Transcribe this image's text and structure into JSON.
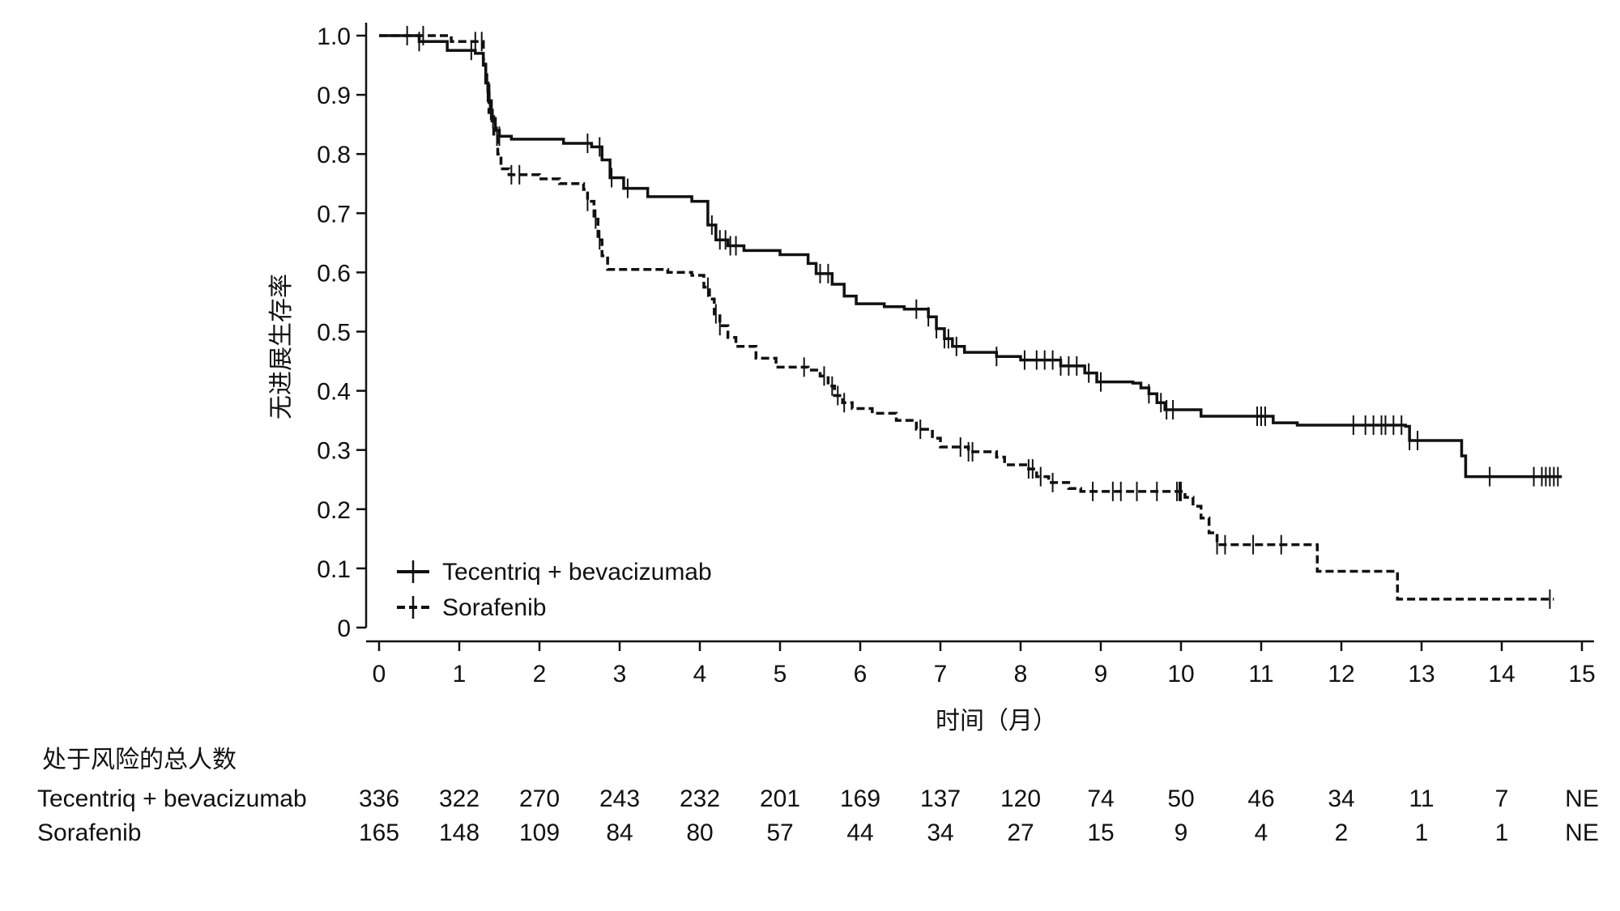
{
  "chart_data": {
    "type": "line",
    "subtype": "kaplan-meier",
    "xlabel": "时间（月）",
    "ylabel": "无进展生存率",
    "xlim": [
      0,
      15
    ],
    "ylim": [
      0,
      1.0
    ],
    "x_ticks": [
      0,
      1,
      2,
      3,
      4,
      5,
      6,
      7,
      8,
      9,
      10,
      11,
      12,
      13,
      14,
      15
    ],
    "y_ticks": [
      0,
      0.1,
      0.2,
      0.3,
      0.4,
      0.5,
      0.6,
      0.7,
      0.8,
      0.9,
      1.0
    ],
    "y_tick_labels": [
      "0",
      "0.1",
      "0.2",
      "0.3",
      "0.4",
      "0.5",
      "0.6",
      "0.7",
      "0.8",
      "0.9",
      "1.0"
    ],
    "grid": false,
    "legend_position": "bottom-left",
    "series": [
      {
        "name": "Tecentriq + bevacizumab",
        "style": "solid",
        "color": "#111111",
        "steps": [
          [
            0,
            1.0
          ],
          [
            0.5,
            0.99
          ],
          [
            0.85,
            0.975
          ],
          [
            1.2,
            0.97
          ],
          [
            1.3,
            0.95
          ],
          [
            1.33,
            0.92
          ],
          [
            1.36,
            0.89
          ],
          [
            1.4,
            0.86
          ],
          [
            1.45,
            0.84
          ],
          [
            1.5,
            0.83
          ],
          [
            1.65,
            0.825
          ],
          [
            2.3,
            0.818
          ],
          [
            2.65,
            0.812
          ],
          [
            2.78,
            0.79
          ],
          [
            2.88,
            0.76
          ],
          [
            3.05,
            0.742
          ],
          [
            3.35,
            0.728
          ],
          [
            3.9,
            0.72
          ],
          [
            4.1,
            0.68
          ],
          [
            4.2,
            0.655
          ],
          [
            4.35,
            0.645
          ],
          [
            4.55,
            0.637
          ],
          [
            5.0,
            0.63
          ],
          [
            5.35,
            0.615
          ],
          [
            5.45,
            0.598
          ],
          [
            5.65,
            0.58
          ],
          [
            5.8,
            0.56
          ],
          [
            5.95,
            0.547
          ],
          [
            6.3,
            0.542
          ],
          [
            6.55,
            0.538
          ],
          [
            6.85,
            0.525
          ],
          [
            6.95,
            0.505
          ],
          [
            7.05,
            0.488
          ],
          [
            7.15,
            0.475
          ],
          [
            7.3,
            0.465
          ],
          [
            7.7,
            0.458
          ],
          [
            8.0,
            0.452
          ],
          [
            8.5,
            0.442
          ],
          [
            8.8,
            0.43
          ],
          [
            8.95,
            0.415
          ],
          [
            9.4,
            0.413
          ],
          [
            9.5,
            0.405
          ],
          [
            9.6,
            0.395
          ],
          [
            9.7,
            0.38
          ],
          [
            9.8,
            0.368
          ],
          [
            10.25,
            0.357
          ],
          [
            11.15,
            0.346
          ],
          [
            11.45,
            0.342
          ],
          [
            12.8,
            0.34
          ],
          [
            12.85,
            0.316
          ],
          [
            13.5,
            0.29
          ],
          [
            13.55,
            0.255
          ],
          [
            14.75,
            0.255
          ]
        ],
        "censor_x": [
          0.5,
          1.15,
          1.35,
          1.38,
          1.42,
          1.5,
          2.6,
          2.75,
          2.9,
          3.1,
          4.15,
          4.25,
          4.32,
          4.38,
          4.45,
          5.5,
          5.6,
          6.7,
          6.85,
          6.95,
          7.05,
          7.1,
          7.2,
          7.7,
          8.05,
          8.2,
          8.3,
          8.4,
          8.5,
          8.6,
          8.7,
          8.85,
          9.0,
          9.6,
          9.75,
          9.82,
          9.9,
          10.95,
          11.0,
          11.05,
          12.15,
          12.3,
          12.4,
          12.5,
          12.55,
          12.65,
          12.75,
          12.85,
          12.95,
          13.85,
          14.4,
          14.5,
          14.55,
          14.6,
          14.65,
          14.7
        ]
      },
      {
        "name": "Sorafenib",
        "style": "dashed",
        "color": "#111111",
        "steps": [
          [
            0,
            1.0
          ],
          [
            0.9,
            0.99
          ],
          [
            1.3,
            0.96
          ],
          [
            1.33,
            0.92
          ],
          [
            1.37,
            0.87
          ],
          [
            1.43,
            0.83
          ],
          [
            1.48,
            0.8
          ],
          [
            1.52,
            0.775
          ],
          [
            1.62,
            0.765
          ],
          [
            2.0,
            0.758
          ],
          [
            2.25,
            0.75
          ],
          [
            2.55,
            0.74
          ],
          [
            2.6,
            0.72
          ],
          [
            2.68,
            0.69
          ],
          [
            2.73,
            0.655
          ],
          [
            2.78,
            0.628
          ],
          [
            2.85,
            0.605
          ],
          [
            3.6,
            0.6
          ],
          [
            3.9,
            0.595
          ],
          [
            4.05,
            0.575
          ],
          [
            4.12,
            0.555
          ],
          [
            4.18,
            0.53
          ],
          [
            4.25,
            0.51
          ],
          [
            4.35,
            0.49
          ],
          [
            4.45,
            0.475
          ],
          [
            4.7,
            0.455
          ],
          [
            4.95,
            0.44
          ],
          [
            5.35,
            0.435
          ],
          [
            5.5,
            0.425
          ],
          [
            5.6,
            0.408
          ],
          [
            5.68,
            0.392
          ],
          [
            5.78,
            0.38
          ],
          [
            5.9,
            0.37
          ],
          [
            6.15,
            0.362
          ],
          [
            6.45,
            0.35
          ],
          [
            6.7,
            0.335
          ],
          [
            6.9,
            0.32
          ],
          [
            7.0,
            0.305
          ],
          [
            7.35,
            0.297
          ],
          [
            7.7,
            0.288
          ],
          [
            7.8,
            0.275
          ],
          [
            8.1,
            0.268
          ],
          [
            8.2,
            0.255
          ],
          [
            8.35,
            0.245
          ],
          [
            8.6,
            0.235
          ],
          [
            8.75,
            0.23
          ],
          [
            10.05,
            0.22
          ],
          [
            10.15,
            0.205
          ],
          [
            10.25,
            0.185
          ],
          [
            10.35,
            0.16
          ],
          [
            10.45,
            0.14
          ],
          [
            11.7,
            0.095
          ],
          [
            12.7,
            0.048
          ],
          [
            14.65,
            0.048
          ]
        ],
        "censor_x": [
          0.35,
          0.55,
          1.2,
          1.28,
          1.35,
          1.4,
          1.47,
          1.65,
          1.75,
          2.6,
          2.7,
          2.75,
          4.1,
          4.2,
          4.25,
          5.3,
          5.55,
          5.65,
          5.72,
          5.8,
          6.75,
          7.25,
          7.35,
          7.4,
          8.1,
          8.15,
          8.25,
          8.4,
          8.9,
          9.15,
          9.25,
          9.45,
          9.7,
          9.95,
          9.98,
          10.0,
          10.45,
          10.55,
          10.9,
          11.25,
          14.6
        ]
      }
    ],
    "risk_table": {
      "title": "处于风险的总人数",
      "rows": [
        {
          "label": "Tecentriq + bevacizumab",
          "values": [
            "336",
            "322",
            "270",
            "243",
            "232",
            "201",
            "169",
            "137",
            "120",
            "74",
            "50",
            "46",
            "34",
            "11",
            "7",
            "NE"
          ]
        },
        {
          "label": "Sorafenib",
          "values": [
            "165",
            "148",
            "109",
            "84",
            "80",
            "57",
            "44",
            "34",
            "27",
            "15",
            "9",
            "4",
            "2",
            "1",
            "1",
            "NE"
          ]
        }
      ]
    }
  }
}
